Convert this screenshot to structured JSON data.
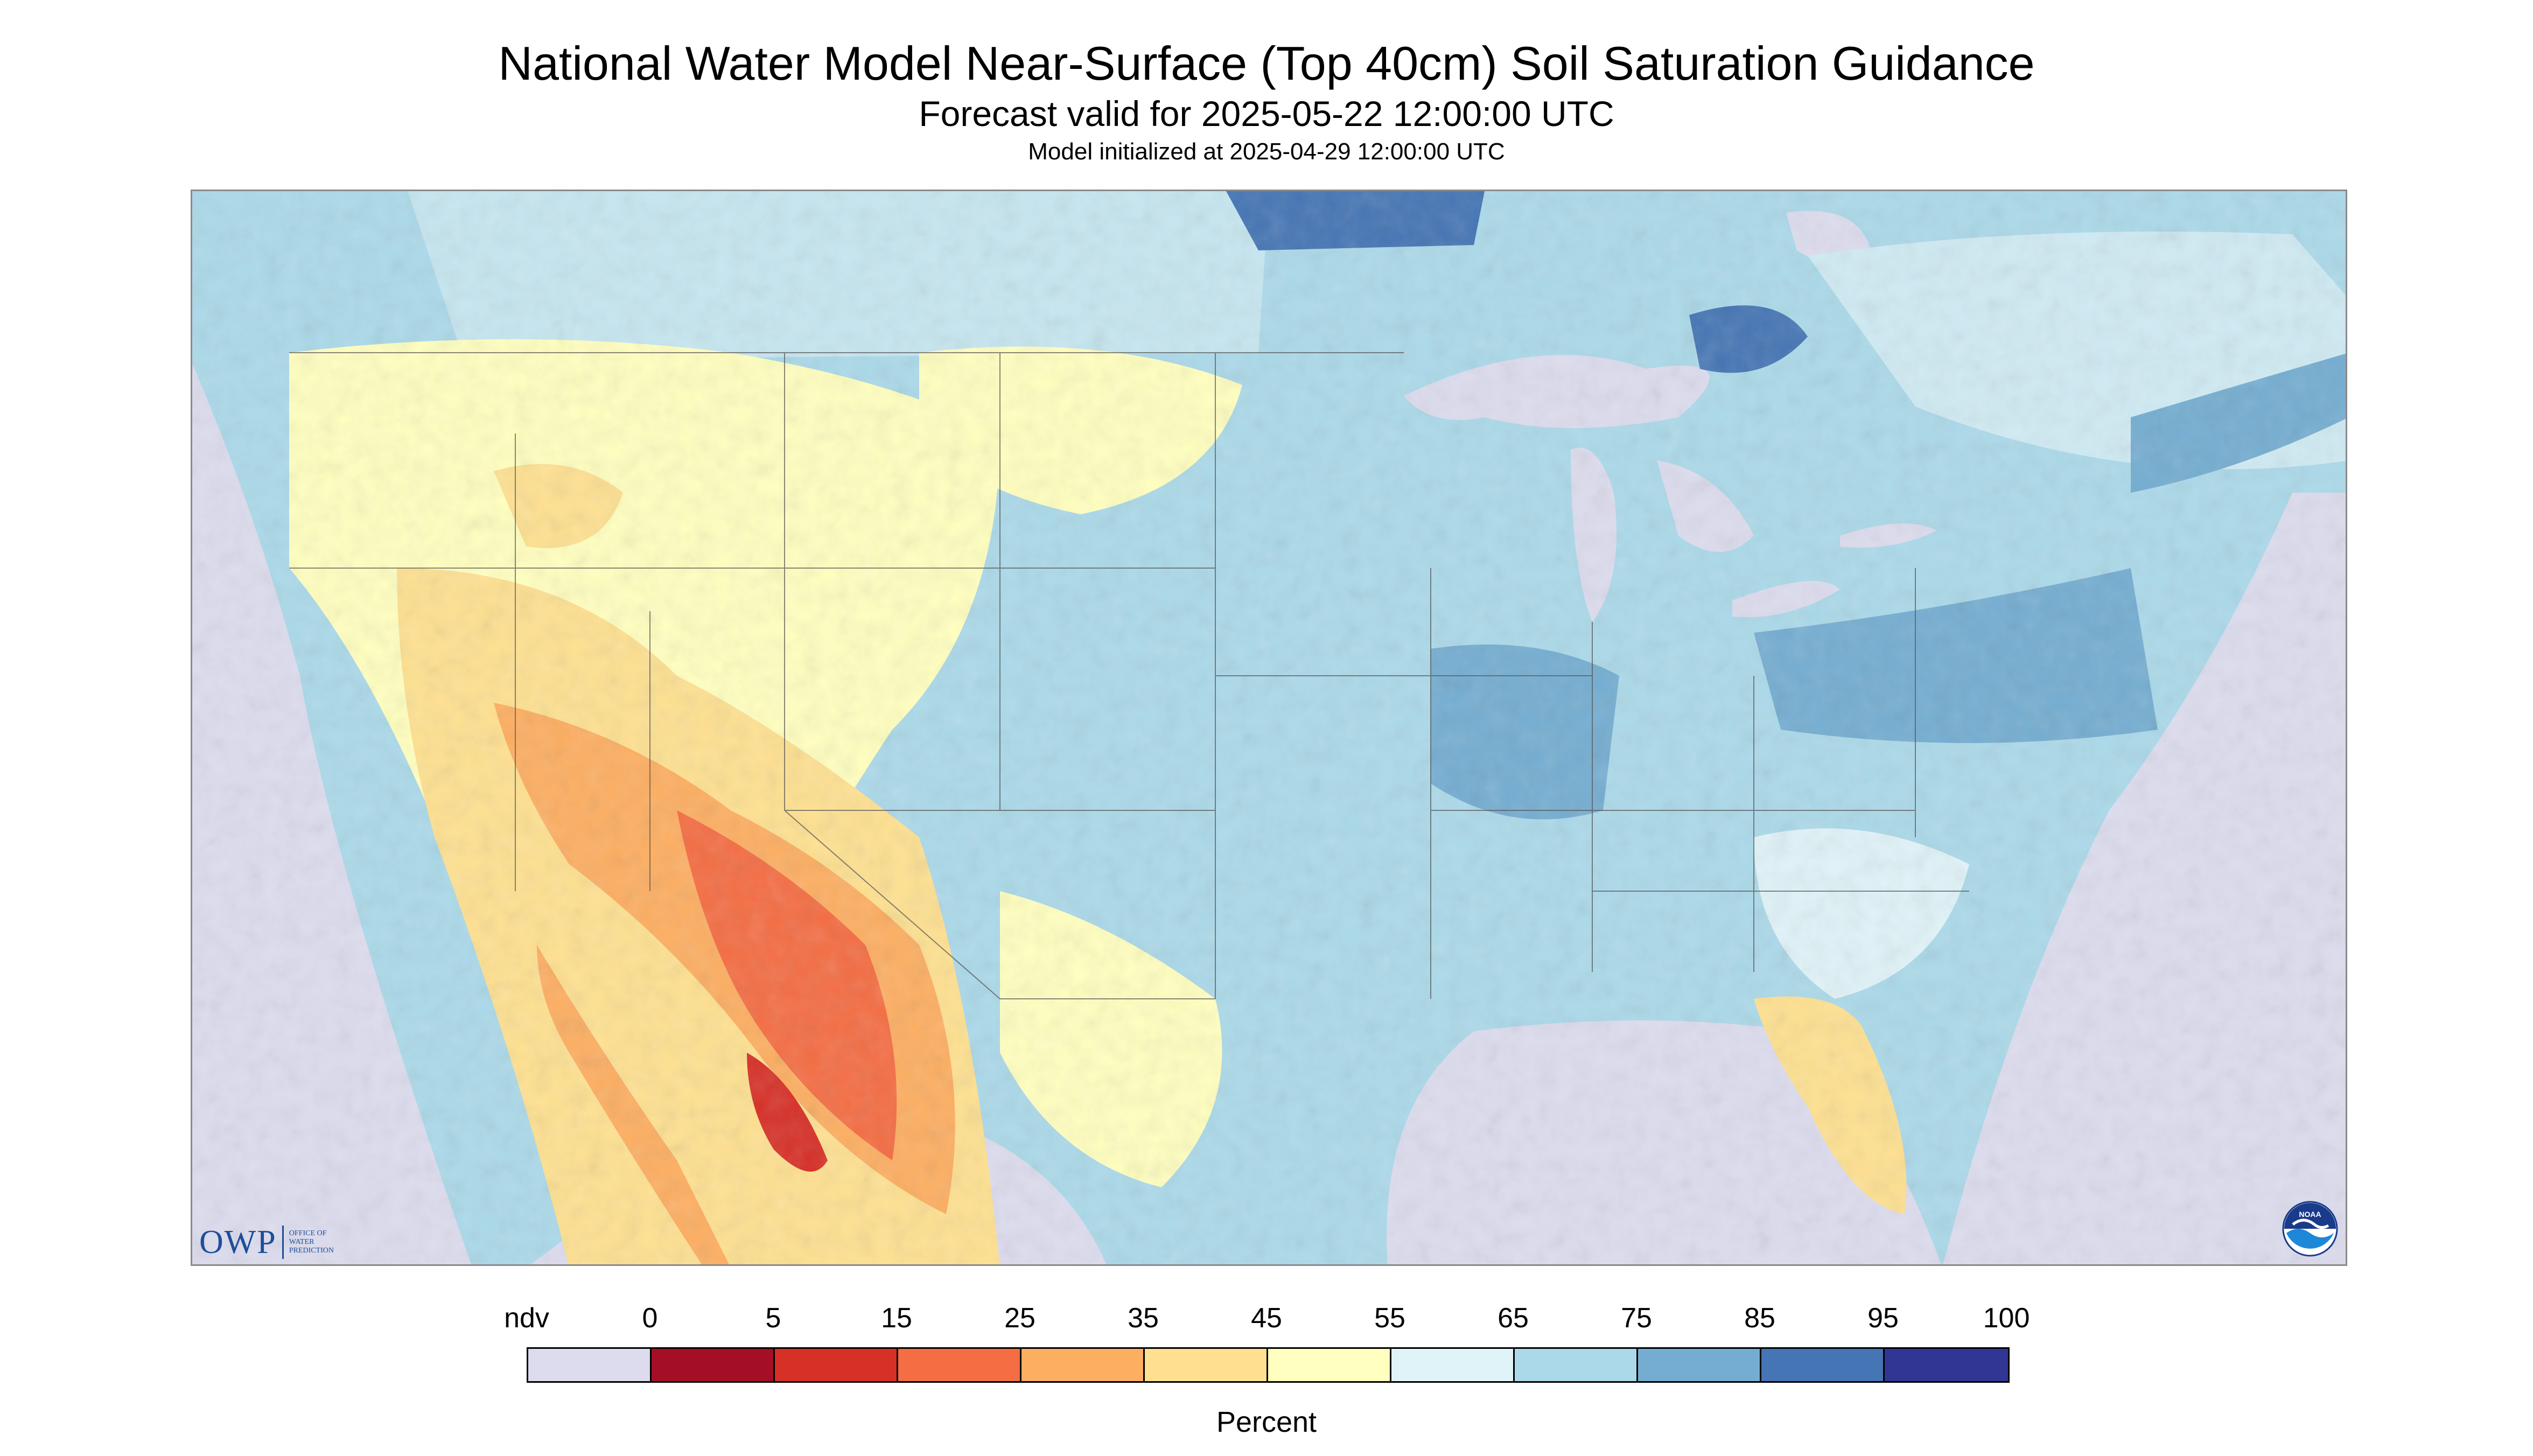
{
  "title": "National Water Model Near-Surface (Top 40cm) Soil Saturation Guidance",
  "subtitle": "Forecast valid for 2025-05-22 12:00:00 UTC",
  "init_line": "Model initialized at 2025-04-29 12:00:00 UTC",
  "logo": {
    "letters": "OWP",
    "line1": "OFFICE OF",
    "line2": "WATER",
    "line3": "PREDICTION",
    "noaa_text": "NOAA"
  },
  "legend": {
    "labels": [
      "ndv",
      "0",
      "5",
      "15",
      "25",
      "35",
      "45",
      "55",
      "65",
      "75",
      "85",
      "95",
      "100"
    ],
    "colors": [
      "#dcdcee",
      "#a50f26",
      "#d73027",
      "#f46d43",
      "#fdae61",
      "#fee090",
      "#ffffbf",
      "#e0f3f8",
      "#abd9e9",
      "#74add1",
      "#4575b4",
      "#313695"
    ],
    "units": "Percent"
  }
}
